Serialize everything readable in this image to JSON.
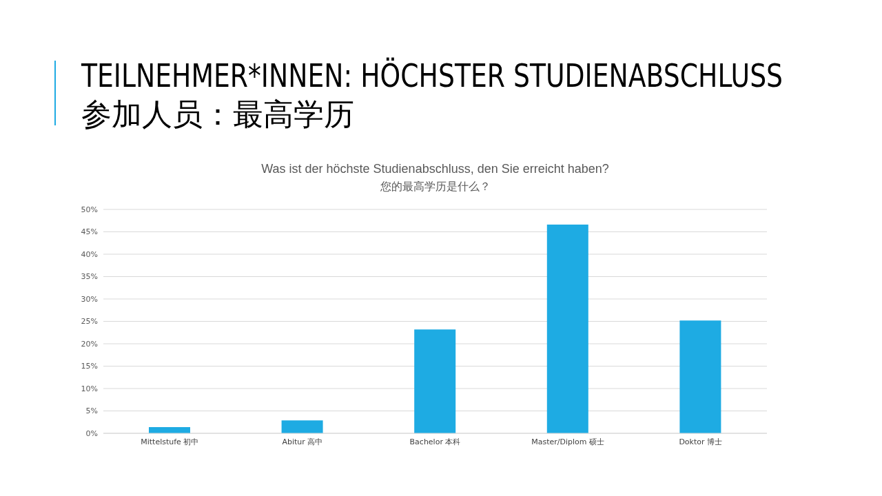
{
  "chart_data": {
    "type": "bar",
    "title": "TEILNEHMER*INNEN: HÖCHSTER STUDIENABSCHLUSS\n参加人员：最高学历",
    "subtitle": "Was ist der höchste Studienabschluss, den Sie erreicht haben?\n您的最高学历是什么？",
    "categories": [
      "Mittelstufe 初中",
      "Abitur 高中",
      "Bachelor 本科",
      "Master/Diplom 硕士",
      "Doktor 博士"
    ],
    "values": [
      1.4,
      2.9,
      23.2,
      46.6,
      25.2
    ],
    "color": "#1eabe3",
    "ylim": [
      0,
      50
    ],
    "yticks": [
      {
        "value": 0,
        "label": "0%"
      },
      {
        "value": 5,
        "label": "5%"
      },
      {
        "value": 10,
        "label": "10%"
      },
      {
        "value": 15,
        "label": "15%"
      },
      {
        "value": 20,
        "label": "20%"
      },
      {
        "value": 25,
        "label": "25%"
      },
      {
        "value": 30,
        "label": "30%"
      },
      {
        "value": 35,
        "label": "35%"
      },
      {
        "value": 40,
        "label": "40%"
      },
      {
        "value": 45,
        "label": "45%"
      },
      {
        "value": 50,
        "label": "50%"
      }
    ],
    "grid": "y"
  }
}
